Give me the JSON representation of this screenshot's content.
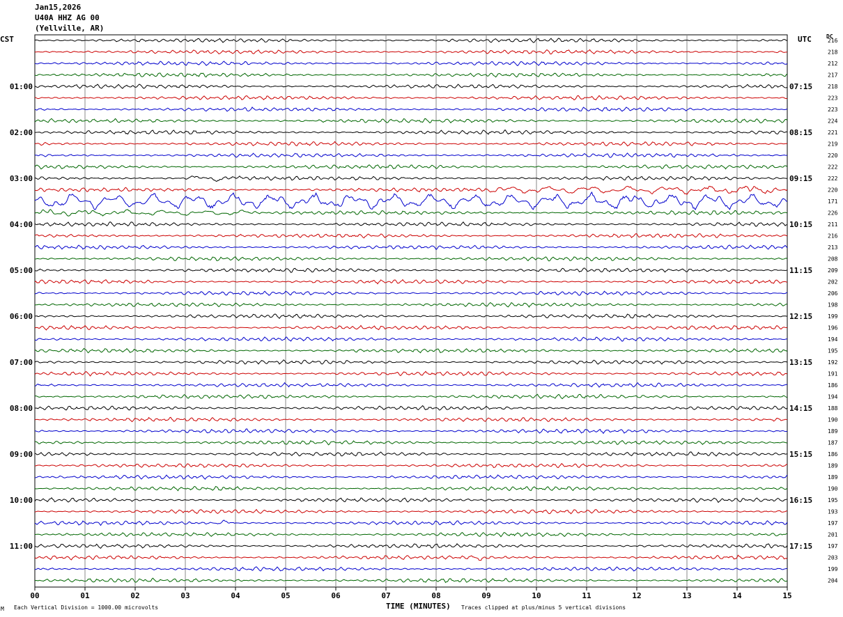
{
  "header": {
    "date": "Jan15,2026",
    "station": "U40A HHZ AG 00",
    "location": "(Yellville, AR)"
  },
  "corner": {
    "left_label": "CST",
    "right_label": "UTC",
    "dc_label": "DC"
  },
  "footer": {
    "vertical_division": "Each Vertical Division = 1000.00 microvolts",
    "time_axis": "TIME (MINUTES)",
    "clip_note": "Traces clipped at plus/minus 5 vertical divisions",
    "small_mark": "M"
  },
  "colors": {
    "line1": "#000000",
    "line2": "#cc0000",
    "line3": "#0000cc",
    "line4": "#006600",
    "grid": "#888888"
  },
  "chart_data": {
    "type": "line",
    "xlabel": "TIME (MINUTES)",
    "x_ticks": [
      "00",
      "01",
      "02",
      "03",
      "04",
      "05",
      "06",
      "07",
      "08",
      "09",
      "10",
      "11",
      "12",
      "13",
      "14",
      "15"
    ],
    "xlim": [
      0,
      15
    ],
    "left_time_labels": [
      "01:00",
      "02:00",
      "03:00",
      "04:00",
      "05:00",
      "06:00",
      "07:00",
      "08:00",
      "09:00",
      "10:00",
      "11:00"
    ],
    "right_time_labels": [
      "07:15",
      "08:15",
      "09:15",
      "10:15",
      "11:15",
      "12:15",
      "13:15",
      "14:15",
      "15:15",
      "16:15",
      "17:15"
    ],
    "dc_offsets": [
      216,
      218,
      212,
      217,
      218,
      223,
      223,
      224,
      221,
      219,
      220,
      222,
      222,
      220,
      171,
      226,
      211,
      216,
      213,
      208,
      209,
      202,
      206,
      198,
      199,
      196,
      194,
      195,
      192,
      191,
      186,
      194,
      188,
      190,
      189,
      187,
      186,
      189,
      189,
      190,
      195,
      193,
      197,
      201,
      197,
      203,
      199,
      204
    ],
    "trace_count": 48,
    "traces_per_hour": 4,
    "minutes_per_trace": 15,
    "events": [
      {
        "trace": 12,
        "x_start": 3.0,
        "x_end": 4.2,
        "amplitude": 4
      },
      {
        "trace": 13,
        "x_start": 9.0,
        "x_end": 15.0,
        "amplitude": 6
      },
      {
        "trace": 14,
        "x_start": 0.0,
        "x_end": 15.0,
        "amplitude": 12
      },
      {
        "trace": 15,
        "x_start": 0.0,
        "x_end": 4.5,
        "amplitude": 4
      },
      {
        "trace": 42,
        "x_start": 3.6,
        "x_end": 3.9,
        "amplitude": 6
      },
      {
        "trace": 43,
        "x_start": 10.3,
        "x_end": 10.5,
        "amplitude": 5
      },
      {
        "trace": 45,
        "x_start": 8.6,
        "x_end": 9.0,
        "amplitude": 5
      }
    ]
  }
}
